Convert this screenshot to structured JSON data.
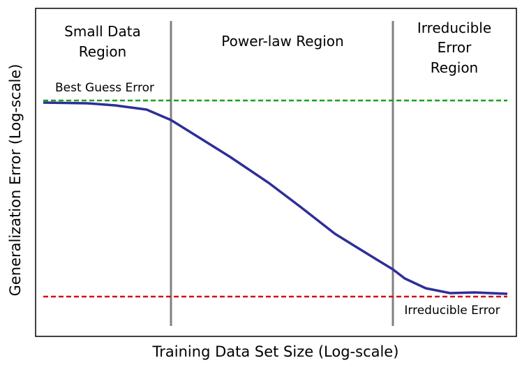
{
  "title_regions": {
    "small_data": [
      "Small Data",
      "Region"
    ],
    "power_law": "Power-law Region",
    "irreducible": [
      "Irreducible",
      "Error",
      "Region"
    ]
  },
  "annotations": {
    "best_guess": "Best Guess Error",
    "irreducible_error": "Irreducible Error"
  },
  "axes": {
    "x_label": "Training Data Set Size (Log-scale)",
    "y_label": "Generalization Error (Log-scale)"
  }
}
